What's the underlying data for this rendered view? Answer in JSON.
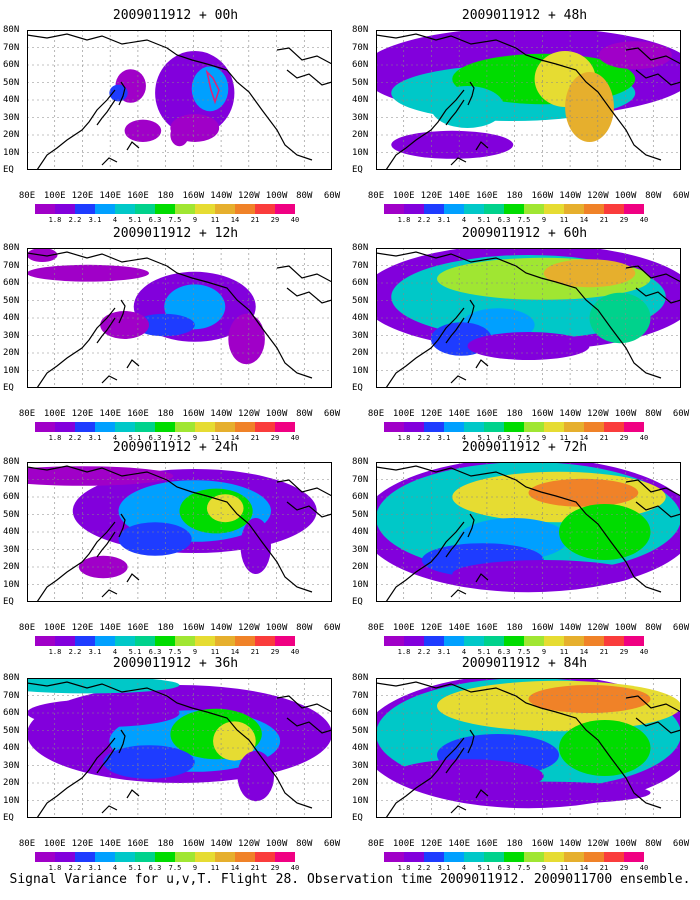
{
  "panels": [
    {
      "title": "2009011912 + 00h"
    },
    {
      "title": "2009011912 + 48h"
    },
    {
      "title": "2009011912 + 12h"
    },
    {
      "title": "2009011912 + 60h"
    },
    {
      "title": "2009011912 + 24h"
    },
    {
      "title": "2009011912 + 72h"
    },
    {
      "title": "2009011912 + 36h"
    },
    {
      "title": "2009011912 + 84h"
    }
  ],
  "xaxis_labels": [
    "80E",
    "100E",
    "120E",
    "140E",
    "160E",
    "180",
    "160W",
    "140W",
    "120W",
    "100W",
    "80W",
    "60W"
  ],
  "yaxis_labels": [
    "80N",
    "70N",
    "60N",
    "50N",
    "40N",
    "30N",
    "20N",
    "10N",
    "EQ"
  ],
  "colorbar": {
    "labels": [
      "1.8",
      "2.2",
      "3.1",
      "4",
      "5.1",
      "6.3",
      "7.5",
      "9",
      "11",
      "14",
      "21",
      "29",
      "40"
    ],
    "colors": [
      "#a000c8",
      "#8200dc",
      "#1e3cff",
      "#00a0ff",
      "#00c8c8",
      "#00d28c",
      "#00dc00",
      "#a0e632",
      "#e6dc32",
      "#e6af2d",
      "#f08228",
      "#fa3c3c",
      "#f00082"
    ]
  },
  "caption": "Signal Variance for u,v,T. Flight 28. Observation time 2009011912. 2009011700 ensemble."
}
